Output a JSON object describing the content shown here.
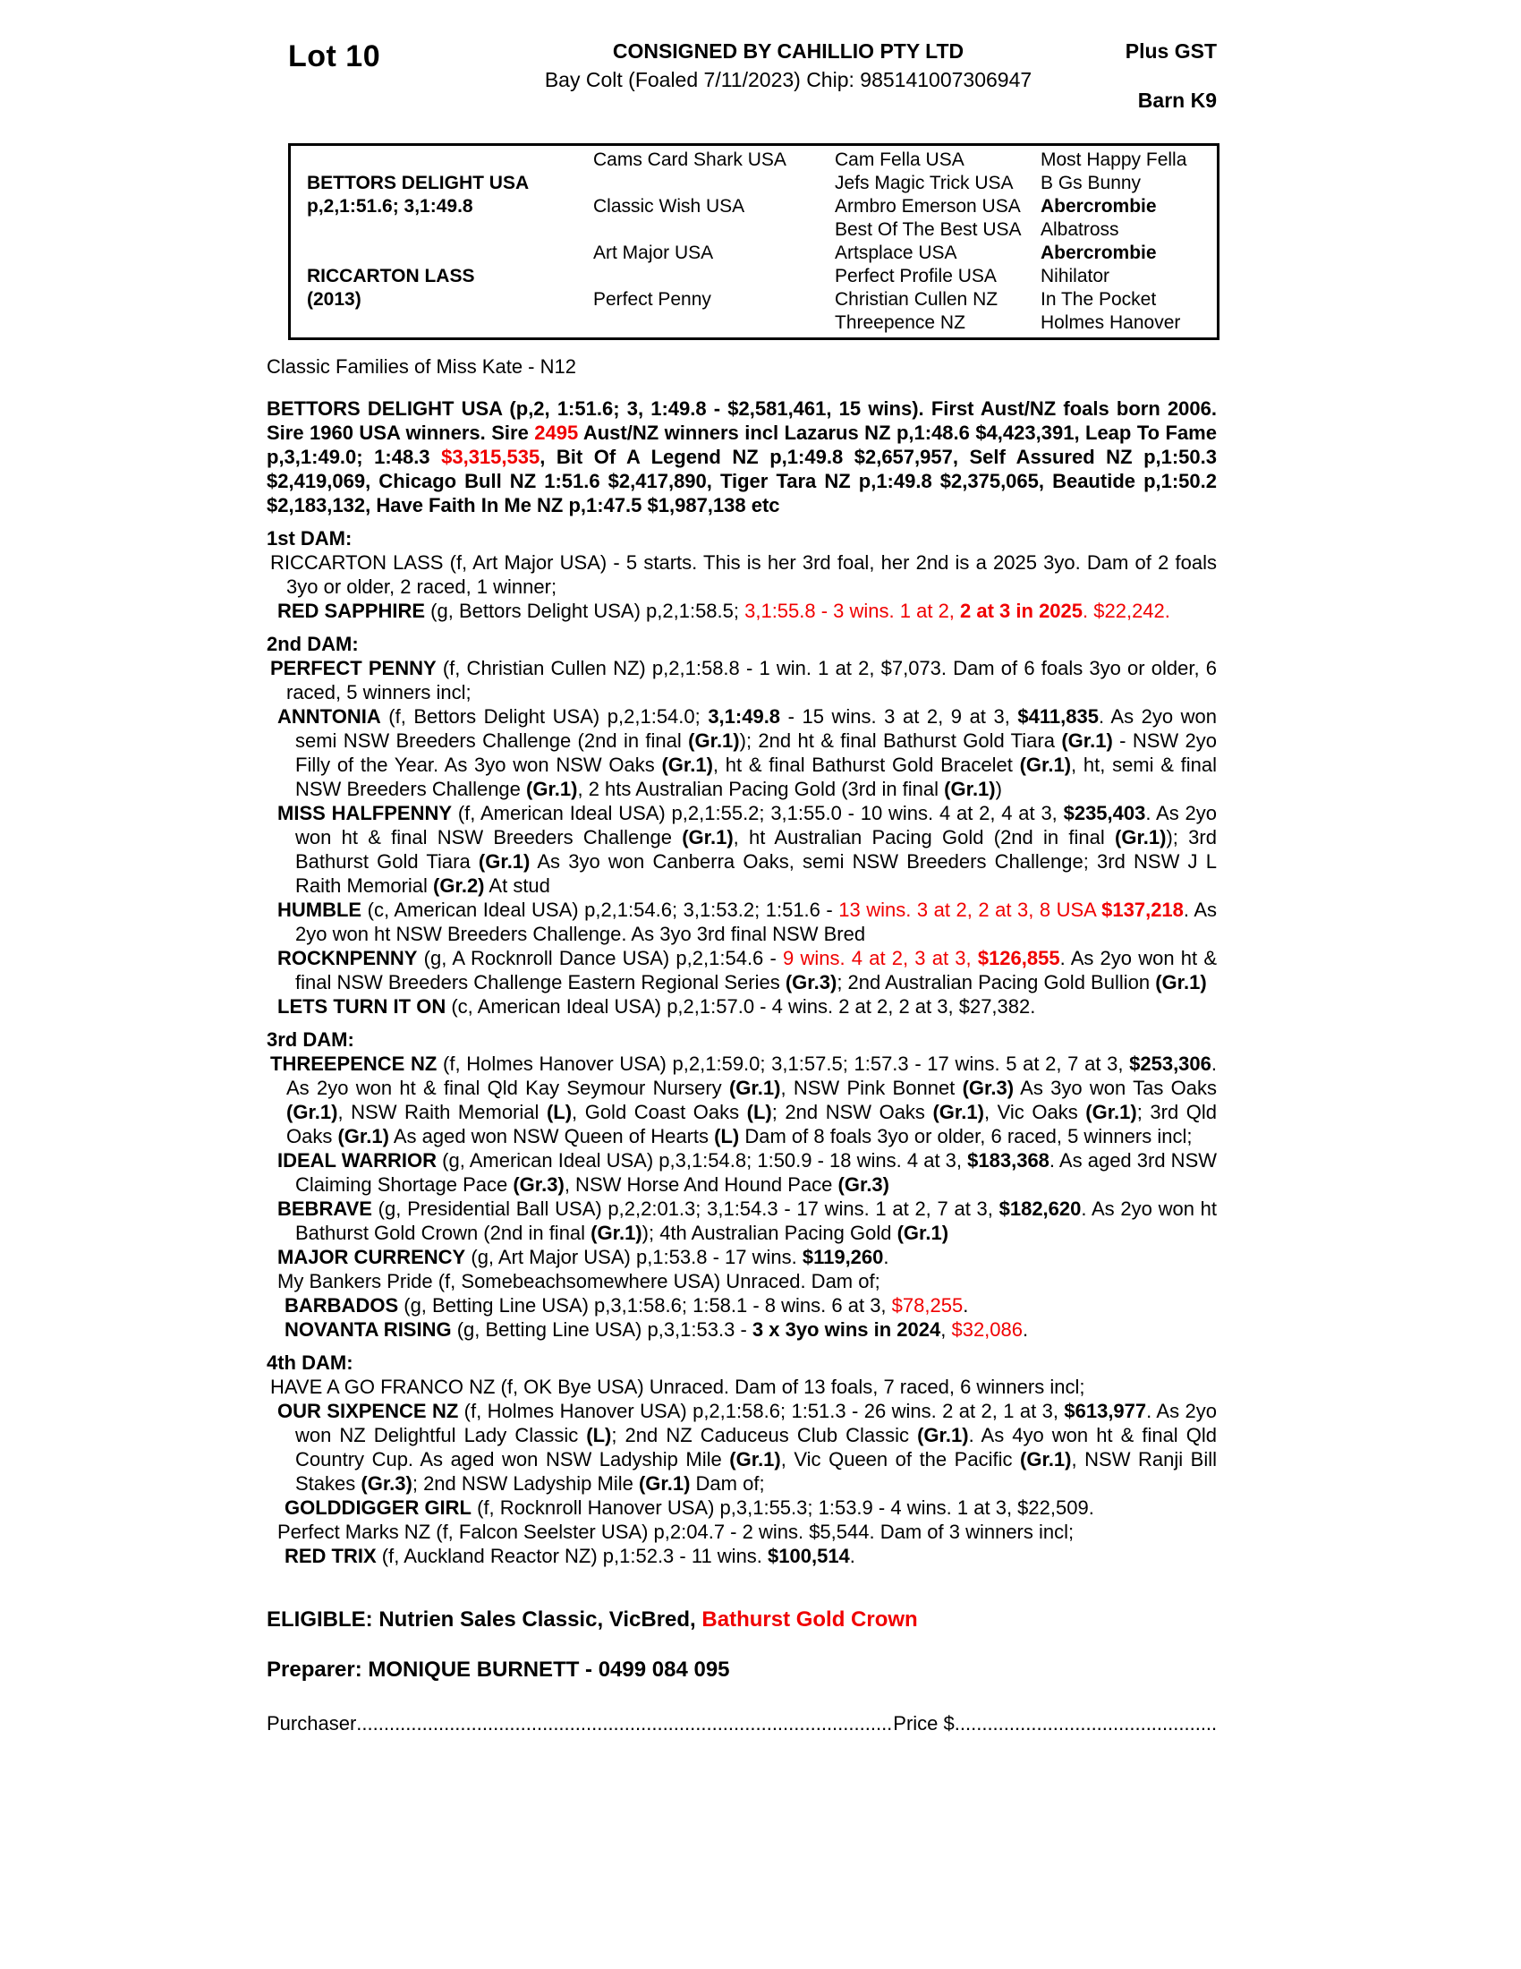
{
  "header": {
    "lot": "Lot 10",
    "consignor": "CONSIGNED BY CAHILLIO PTY LTD",
    "foal_line": "Bay Colt (Foaled 7/11/2023) Chip: 985141007306947",
    "plus_gst": "Plus GST",
    "barn": "Barn K9"
  },
  "pedigree": {
    "sire_name": "BETTORS DELIGHT USA",
    "sire_record": "p,2,1:51.6; 3,1:49.8",
    "dam_name": "RICCARTON LASS",
    "dam_year": "(2013)",
    "col2": [
      "Cams Card Shark USA",
      "Classic Wish USA",
      "Art Major USA",
      "Perfect Penny"
    ],
    "col3": [
      "Cam Fella USA",
      "Jefs Magic Trick USA",
      "Armbro Emerson USA",
      "Best Of The Best USA",
      "Artsplace USA",
      "Perfect Profile USA",
      "Christian Cullen NZ",
      "Threepence NZ"
    ],
    "col4": [
      [
        {
          "t": "Most Happy Fella"
        }
      ],
      [
        {
          "t": "B Gs Bunny"
        }
      ],
      [
        {
          "t": "Abercrombie",
          "b": true
        }
      ],
      [
        {
          "t": "Albatross"
        }
      ],
      [
        {
          "t": "Abercrombie",
          "b": true
        }
      ],
      [
        {
          "t": "Nihilator"
        }
      ],
      [
        {
          "t": "In The Pocket"
        }
      ],
      [
        {
          "t": "Holmes Hanover"
        }
      ]
    ]
  },
  "family_line": "Classic Families of Miss Kate - N12",
  "sire_paragraph": [
    {
      "t": "BETTORS DELIGHT USA (p,2, 1:51.6; 3, 1:49.8 - $2,581,461, 15 wins). First Aust/NZ foals born 2006. Sire 1960 USA winners. Sire "
    },
    {
      "t": "2495",
      "r": true
    },
    {
      "t": " Aust/NZ winners incl Lazarus NZ p,1:48.6 $4,423,391, Leap To Fame p,3,1:49.0; 1:48.3 "
    },
    {
      "t": "$3,315,535",
      "r": true
    },
    {
      "t": ", Bit Of A Legend NZ p,1:49.8 $2,657,957, Self Assured NZ p,1:50.3 $2,419,069, Chicago Bull NZ 1:51.6 $2,417,890, Tiger Tara NZ p,1:49.8 $2,375,065, Beautide p,1:50.2 $2,183,132, Have Faith In Me NZ p,1:47.5 $1,987,138 etc"
    }
  ],
  "sections": [
    {
      "heading": "1st DAM:",
      "entries": [
        {
          "ind": 0,
          "segs": [
            {
              "t": "RICCARTON LASS (f, Art Major USA) - 5 starts. This is her 3rd foal, her 2nd is a 2025 3yo. Dam of 2 foals 3yo or older, 2 raced, 1 winner;"
            }
          ]
        },
        {
          "ind": 1,
          "segs": [
            {
              "t": "RED SAPPHIRE",
              "b": true
            },
            {
              "t": " (g, Bettors Delight USA) p,2,1:58.5; "
            },
            {
              "t": "3,1:55.8 - 3 wins. 1 at 2, ",
              "r": true
            },
            {
              "t": "2 at 3 in 2025",
              "b": true,
              "r": true
            },
            {
              "t": ". ",
              "r": true
            },
            {
              "t": "$22,242.",
              "r": true
            }
          ]
        }
      ]
    },
    {
      "heading": "2nd DAM:",
      "entries": [
        {
          "ind": 0,
          "segs": [
            {
              "t": "PERFECT PENNY",
              "b": true
            },
            {
              "t": " (f, Christian Cullen NZ) p,2,1:58.8 - 1 win. 1 at 2, $7,073. Dam of 6 foals 3yo or older, 6 raced, 5 winners incl;"
            }
          ]
        },
        {
          "ind": 1,
          "segs": [
            {
              "t": "ANNTONIA",
              "b": true
            },
            {
              "t": " (f, Bettors Delight USA) p,2,1:54.0; "
            },
            {
              "t": "3,1:49.8",
              "b": true
            },
            {
              "t": " - 15 wins. 3 at 2, 9 at 3, "
            },
            {
              "t": "$411,835",
              "b": true
            },
            {
              "t": ". As 2yo won semi NSW Breeders Challenge (2nd in final "
            },
            {
              "t": "(Gr.1)",
              "b": true
            },
            {
              "t": "); 2nd ht & final Bathurst Gold Tiara "
            },
            {
              "t": "(Gr.1)",
              "b": true
            },
            {
              "t": " - NSW 2yo Filly of the Year. As 3yo won NSW Oaks "
            },
            {
              "t": "(Gr.1)",
              "b": true
            },
            {
              "t": ", ht & final Bathurst Gold Bracelet "
            },
            {
              "t": "(Gr.1)",
              "b": true
            },
            {
              "t": ", ht, semi & final NSW Breeders Challenge "
            },
            {
              "t": "(Gr.1)",
              "b": true
            },
            {
              "t": ", 2 hts Australian Pacing Gold (3rd in final "
            },
            {
              "t": "(Gr.1)",
              "b": true
            },
            {
              "t": ")"
            }
          ]
        },
        {
          "ind": 1,
          "segs": [
            {
              "t": "MISS HALFPENNY",
              "b": true
            },
            {
              "t": " (f, American Ideal USA) p,2,1:55.2; 3,1:55.0 - 10 wins. 4 at 2, 4 at 3, "
            },
            {
              "t": "$235,403",
              "b": true
            },
            {
              "t": ". As 2yo won ht & final NSW Breeders Challenge "
            },
            {
              "t": "(Gr.1)",
              "b": true
            },
            {
              "t": ", ht Australian Pacing Gold (2nd in final "
            },
            {
              "t": "(Gr.1)",
              "b": true
            },
            {
              "t": "); 3rd Bathurst Gold Tiara "
            },
            {
              "t": "(Gr.1)",
              "b": true
            },
            {
              "t": " As 3yo won Canberra Oaks, semi NSW Breeders Challenge; 3rd NSW J L Raith Memorial "
            },
            {
              "t": "(Gr.2)",
              "b": true
            },
            {
              "t": " At stud"
            }
          ]
        },
        {
          "ind": 1,
          "segs": [
            {
              "t": "HUMBLE",
              "b": true
            },
            {
              "t": " (c, American Ideal USA) p,2,1:54.6; 3,1:53.2; 1:51.6 - "
            },
            {
              "t": "13 wins. 3 at 2, 2 at 3, 8 USA ",
              "r": true
            },
            {
              "t": "$137,218",
              "b": true,
              "r": true
            },
            {
              "t": ". As 2yo won ht NSW Breeders Challenge. As 3yo 3rd final NSW Bred"
            }
          ]
        },
        {
          "ind": 1,
          "segs": [
            {
              "t": "ROCKNPENNY",
              "b": true
            },
            {
              "t": " (g, A Rocknroll Dance USA) p,2,1:54.6 - "
            },
            {
              "t": "9 wins. 4 at 2, 3 at 3, ",
              "r": true
            },
            {
              "t": "$126,855",
              "b": true,
              "r": true
            },
            {
              "t": ". As 2yo won ht & final NSW Breeders Challenge Eastern Regional Series "
            },
            {
              "t": "(Gr.3)",
              "b": true
            },
            {
              "t": "; 2nd Australian Pacing Gold Bullion "
            },
            {
              "t": "(Gr.1)",
              "b": true
            }
          ]
        },
        {
          "ind": 1,
          "segs": [
            {
              "t": "LETS TURN IT ON",
              "b": true
            },
            {
              "t": " (c, American Ideal USA) p,2,1:57.0 - 4 wins. 2 at 2, 2 at 3, $27,382."
            }
          ]
        }
      ]
    },
    {
      "heading": "3rd DAM:",
      "entries": [
        {
          "ind": 0,
          "segs": [
            {
              "t": "THREEPENCE NZ",
              "b": true
            },
            {
              "t": " (f, Holmes Hanover USA) p,2,1:59.0; 3,1:57.5; 1:57.3 - 17 wins. 5 at 2, 7 at 3, "
            },
            {
              "t": "$253,306",
              "b": true
            },
            {
              "t": ". As 2yo won ht & final Qld Kay Seymour Nursery "
            },
            {
              "t": "(Gr.1)",
              "b": true
            },
            {
              "t": ", NSW Pink Bonnet "
            },
            {
              "t": "(Gr.3)",
              "b": true
            },
            {
              "t": " As 3yo won Tas Oaks "
            },
            {
              "t": "(Gr.1)",
              "b": true
            },
            {
              "t": ", NSW Raith Memorial "
            },
            {
              "t": "(L)",
              "b": true
            },
            {
              "t": ", Gold Coast Oaks "
            },
            {
              "t": "(L)",
              "b": true
            },
            {
              "t": "; 2nd NSW Oaks "
            },
            {
              "t": "(Gr.1)",
              "b": true
            },
            {
              "t": ", Vic Oaks "
            },
            {
              "t": "(Gr.1)",
              "b": true
            },
            {
              "t": "; 3rd Qld Oaks "
            },
            {
              "t": "(Gr.1)",
              "b": true
            },
            {
              "t": " As aged won NSW Queen of Hearts "
            },
            {
              "t": "(L)",
              "b": true
            },
            {
              "t": " Dam of 8 foals 3yo or older, 6 raced, 5 winners incl;"
            }
          ]
        },
        {
          "ind": 1,
          "segs": [
            {
              "t": "IDEAL WARRIOR",
              "b": true
            },
            {
              "t": " (g, American Ideal USA) p,3,1:54.8; 1:50.9 - 18 wins. 4 at 3, "
            },
            {
              "t": "$183,368",
              "b": true
            },
            {
              "t": ". As aged 3rd NSW Claiming Shortage Pace "
            },
            {
              "t": "(Gr.3)",
              "b": true
            },
            {
              "t": ", NSW Horse And Hound Pace "
            },
            {
              "t": "(Gr.3)",
              "b": true
            }
          ]
        },
        {
          "ind": 1,
          "segs": [
            {
              "t": "BEBRAVE",
              "b": true
            },
            {
              "t": " (g, Presidential Ball USA) p,2,2:01.3; 3,1:54.3 - 17 wins. 1 at 2, 7 at 3, "
            },
            {
              "t": "$182,620",
              "b": true
            },
            {
              "t": ". As 2yo won ht Bathurst Gold Crown (2nd in final "
            },
            {
              "t": "(Gr.1)",
              "b": true
            },
            {
              "t": "); 4th Australian Pacing Gold "
            },
            {
              "t": "(Gr.1)",
              "b": true
            }
          ]
        },
        {
          "ind": 1,
          "segs": [
            {
              "t": "MAJOR CURRENCY",
              "b": true
            },
            {
              "t": " (g, Art Major USA) p,1:53.8 - 17 wins. "
            },
            {
              "t": "$119,260",
              "b": true
            },
            {
              "t": "."
            }
          ]
        },
        {
          "ind": 1,
          "segs": [
            {
              "t": "My Bankers Pride (f, Somebeachsomewhere USA) Unraced. Dam of;"
            }
          ]
        },
        {
          "ind": 2,
          "segs": [
            {
              "t": "BARBADOS",
              "b": true
            },
            {
              "t": " (g, Betting Line USA) p,3,1:58.6; 1:58.1 - 8 wins. 6 at 3, "
            },
            {
              "t": "$78,255",
              "r": true
            },
            {
              "t": "."
            }
          ]
        },
        {
          "ind": 2,
          "segs": [
            {
              "t": "NOVANTA RISING",
              "b": true
            },
            {
              "t": " (g, Betting Line USA) p,3,1:53.3 - "
            },
            {
              "t": "3 x 3yo wins in 2024",
              "b": true
            },
            {
              "t": ", "
            },
            {
              "t": "$32,086",
              "r": true
            },
            {
              "t": "."
            }
          ]
        }
      ]
    },
    {
      "heading": "4th DAM:",
      "entries": [
        {
          "ind": 0,
          "segs": [
            {
              "t": "HAVE A GO FRANCO NZ (f, OK Bye USA) Unraced. Dam of 13 foals, 7 raced, 6 winners incl;"
            }
          ]
        },
        {
          "ind": 1,
          "segs": [
            {
              "t": "OUR SIXPENCE NZ",
              "b": true
            },
            {
              "t": " (f, Holmes Hanover USA) p,2,1:58.6; 1:51.3 - 26 wins. 2 at 2, 1 at 3, "
            },
            {
              "t": "$613,977",
              "b": true
            },
            {
              "t": ". As 2yo won NZ Delightful Lady Classic "
            },
            {
              "t": "(L)",
              "b": true
            },
            {
              "t": "; 2nd NZ Caduceus Club Classic "
            },
            {
              "t": "(Gr.1)",
              "b": true
            },
            {
              "t": ". As 4yo won ht & final Qld Country Cup. As aged won NSW Ladyship Mile "
            },
            {
              "t": "(Gr.1)",
              "b": true
            },
            {
              "t": ", Vic Queen of the Pacific "
            },
            {
              "t": "(Gr.1)",
              "b": true
            },
            {
              "t": ", NSW Ranji Bill Stakes "
            },
            {
              "t": "(Gr.3)",
              "b": true
            },
            {
              "t": "; 2nd NSW Ladyship Mile "
            },
            {
              "t": "(Gr.1)",
              "b": true
            },
            {
              "t": " Dam of;"
            }
          ]
        },
        {
          "ind": 2,
          "segs": [
            {
              "t": "GOLDDIGGER GIRL",
              "b": true
            },
            {
              "t": " (f, Rocknroll Hanover USA) p,3,1:55.3; 1:53.9 - 4 wins. 1 at 3, $22,509."
            }
          ]
        },
        {
          "ind": 1,
          "segs": [
            {
              "t": "Perfect Marks NZ (f, Falcon Seelster USA) p,2:04.7 - 2 wins. $5,544. Dam of 3 winners incl;"
            }
          ]
        },
        {
          "ind": 2,
          "segs": [
            {
              "t": "RED TRIX",
              "b": true
            },
            {
              "t": " (f, Auckland Reactor NZ) p,1:52.3 - 11 wins. "
            },
            {
              "t": "$100,514",
              "b": true
            },
            {
              "t": "."
            }
          ]
        }
      ]
    }
  ],
  "eligible": [
    {
      "t": "ELIGIBLE: Nutrien Sales Classic, VicBred, ",
      "b": true
    },
    {
      "t": "Bathurst Gold Crown",
      "b": true,
      "r": true
    }
  ],
  "preparer": "Preparer: MONIQUE BURNETT - 0499 084 095",
  "purchase": {
    "purchaser_label": "Purchaser",
    "dots1": "....................................................................................................................................",
    "price_label": "Price $",
    "dots2": "...................................................................."
  },
  "colors": {
    "highlight_red": "#f00000",
    "text": "#000000",
    "page_background": "#ffffff"
  }
}
